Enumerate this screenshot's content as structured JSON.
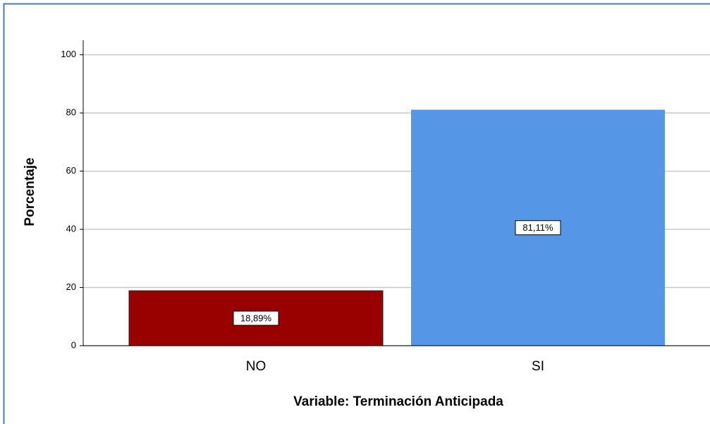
{
  "chart_data": {
    "type": "bar",
    "categories": [
      "NO",
      "SI"
    ],
    "values": [
      18.89,
      81.11
    ],
    "value_labels": [
      "18,89%",
      "81,11%"
    ],
    "colors": [
      "#990000",
      "#5596e6"
    ],
    "xlabel": "Variable: Terminación Anticipada",
    "ylabel": "Porcentaje",
    "ylim": [
      0,
      105
    ],
    "yticks": [
      0,
      20,
      40,
      60,
      80,
      100
    ],
    "grid": true
  }
}
